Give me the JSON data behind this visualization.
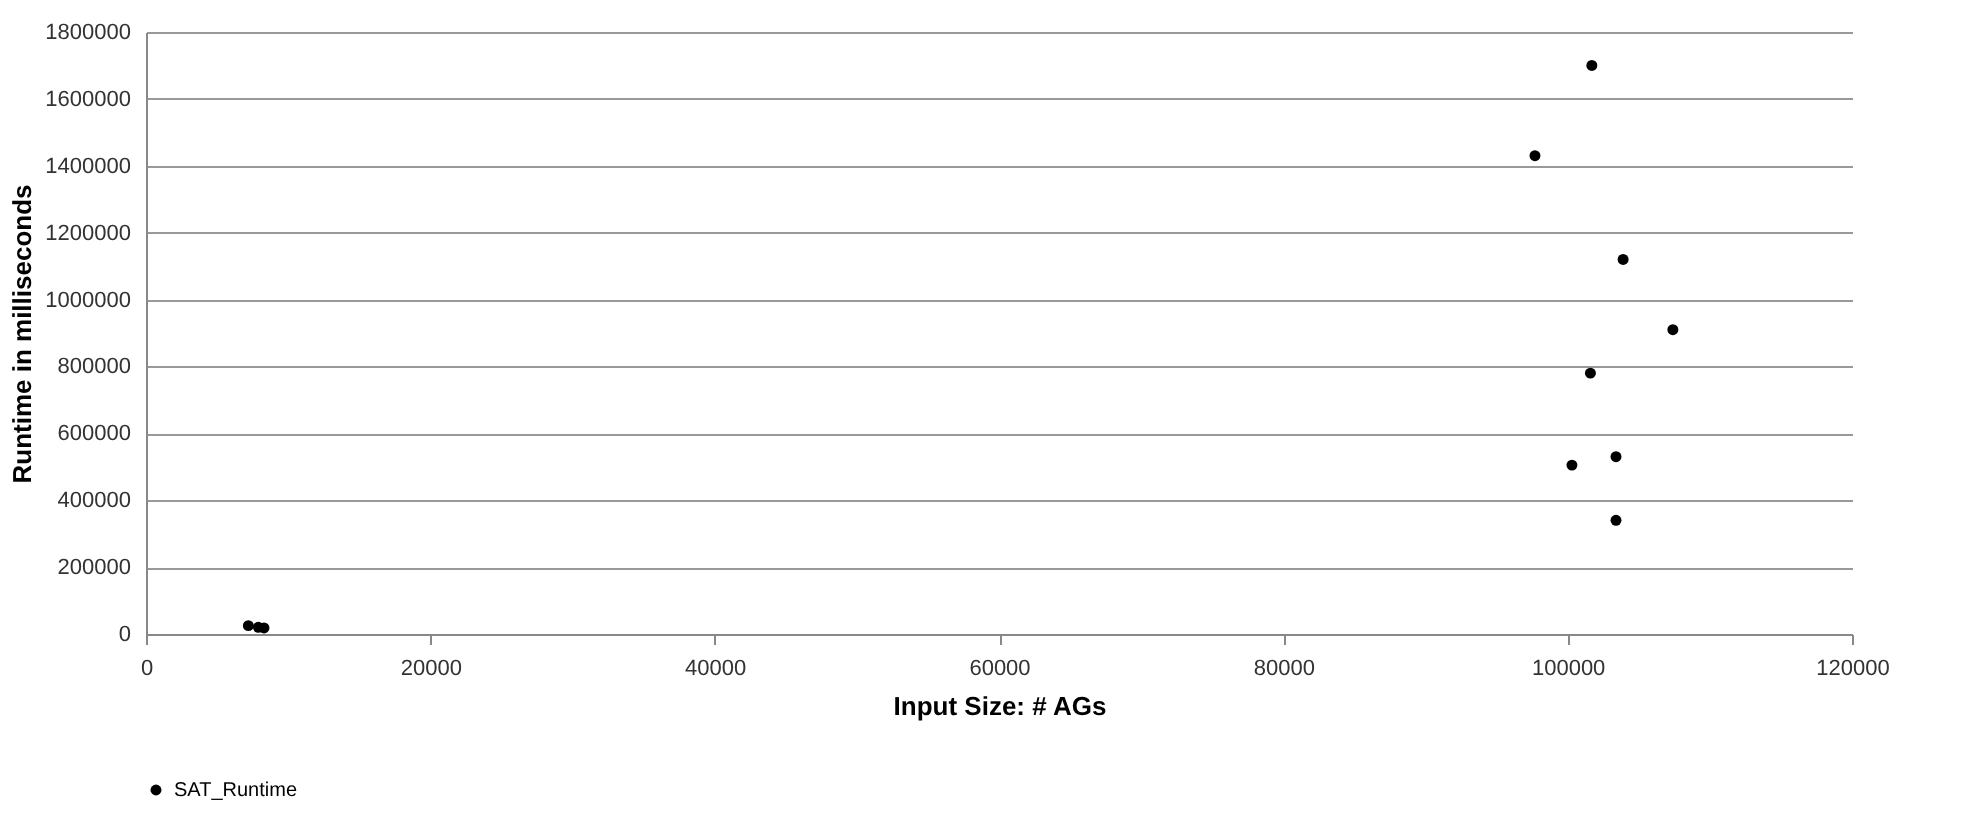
{
  "chart_data": {
    "type": "scatter",
    "xlabel": "Input Size: # AGs",
    "ylabel": "Runtime in milliseconds",
    "series": [
      {
        "name": "SAT_Runtime",
        "color": "#000000",
        "x": [
          7200,
          7900,
          8300,
          101700,
          97700,
          103900,
          107400,
          101600,
          103400,
          100300,
          103400
        ],
        "values": [
          25000,
          20000,
          18000,
          1700000,
          1430000,
          1120000,
          910000,
          780000,
          530000,
          505000,
          340000
        ]
      }
    ],
    "xlim": [
      0,
      120000
    ],
    "xticks": [
      0,
      20000,
      40000,
      60000,
      80000,
      100000,
      120000
    ],
    "ylim": [
      0,
      1800000
    ],
    "yticks": [
      0,
      200000,
      400000,
      600000,
      800000,
      1000000,
      1200000,
      1400000,
      1600000,
      1800000
    ],
    "grid": "y",
    "legend": "bottom",
    "marker": "circle"
  }
}
